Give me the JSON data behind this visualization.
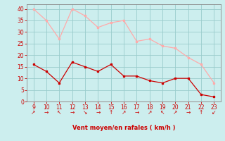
{
  "x_hours": [
    9,
    10,
    11,
    12,
    13,
    14,
    15,
    16,
    17,
    18,
    19,
    20,
    21,
    22,
    23
  ],
  "wind_avg": [
    16,
    13,
    8,
    17,
    15,
    13,
    16,
    11,
    11,
    9,
    8,
    10,
    10,
    3,
    2
  ],
  "wind_gust": [
    40,
    35,
    27,
    40,
    37,
    32,
    34,
    35,
    26,
    27,
    24,
    23,
    19,
    16,
    8
  ],
  "avg_color": "#cc0000",
  "gust_color": "#ffaaaa",
  "bg_color": "#cceeee",
  "grid_color": "#99cccc",
  "axis_color": "#cc0000",
  "xlabel": "Vent moyen/en rafales ( km/h )",
  "xlim": [
    8.5,
    23.5
  ],
  "ylim": [
    0,
    42
  ],
  "yticks": [
    0,
    5,
    10,
    15,
    20,
    25,
    30,
    35,
    40
  ],
  "xticks": [
    9,
    10,
    11,
    12,
    13,
    14,
    15,
    16,
    17,
    18,
    19,
    20,
    21,
    22,
    23
  ],
  "wind_arrows": [
    "↗",
    "→",
    "↖",
    "→",
    "↘",
    "→",
    "↑",
    "↗",
    "→",
    "↗",
    "↖",
    "↗",
    "→",
    "↑",
    "↙"
  ]
}
